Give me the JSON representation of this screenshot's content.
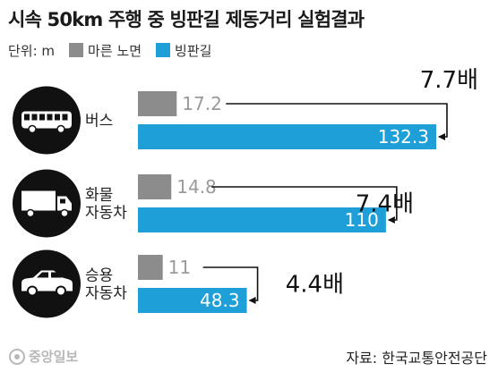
{
  "title": "시속 50km 주행 중 빙판길 제동거리 실험결과",
  "legend": {
    "unit_label": "단위: m",
    "items": [
      {
        "label": "마른 노면",
        "color": "#8c8c8c"
      },
      {
        "label": "빙판길",
        "color": "#1e9fd8"
      }
    ]
  },
  "colors": {
    "dry": "#8c8c8c",
    "ice": "#1e9fd8",
    "icon_bg": "#111111",
    "dry_value_text": "#9a9a9a",
    "ice_value_text": "#ffffff",
    "connector": "#111111"
  },
  "chart_data": {
    "type": "bar",
    "orientation": "horizontal",
    "categories": [
      "버스",
      "화물\n자동차",
      "승용\n자동차"
    ],
    "icons": [
      "bus-icon",
      "truck-icon",
      "car-icon"
    ],
    "series": [
      {
        "name": "마른 노면",
        "values": [
          17.2,
          14.8,
          11
        ]
      },
      {
        "name": "빙판길",
        "values": [
          132.3,
          110,
          48.3
        ]
      }
    ],
    "value_labels": {
      "dry": [
        "17.2",
        "14.8",
        "11"
      ],
      "ice": [
        "132.3",
        "110",
        "48.3"
      ]
    },
    "ratio_labels": [
      "7.7배",
      "7.4배",
      "4.4배"
    ],
    "xlim": [
      0,
      132.3
    ],
    "grid": false
  },
  "footer": {
    "logo_text": "중앙일보",
    "source": "자료: 한국교통안전공단"
  }
}
